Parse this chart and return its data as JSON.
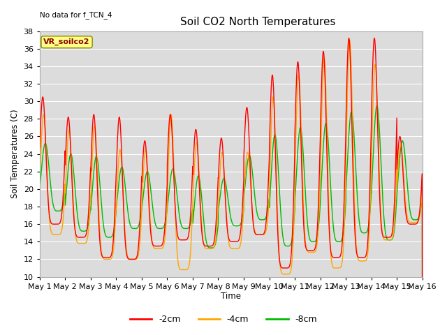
{
  "title": "Soil CO2 North Temperatures",
  "no_data_text": "No data for f_TCN_4",
  "ylabel": "Soil Temperatures (C)",
  "xlabel": "Time",
  "legend_label": "VR_soilco2",
  "ylim": [
    10,
    38
  ],
  "xlim": [
    0,
    15
  ],
  "line_colors": {
    "m2cm": "#ff0000",
    "m4cm": "#ffa500",
    "m8cm": "#00bb00"
  },
  "bg_color": "#dcdcdc",
  "fig_bg": "#ffffff",
  "grid_color": "#ffffff",
  "tick_labels": [
    "May 1",
    "May 2",
    "May 3",
    "May 4",
    "May 5",
    "May 6",
    "May 7",
    "May 8",
    "May 9",
    "May 10",
    "May 11",
    "May 12",
    "May 13",
    "May 14",
    "May 15",
    "May 16"
  ],
  "figsize": [
    6.4,
    4.8
  ],
  "dpi": 100,
  "peaks_2cm": [
    30.5,
    28.2,
    28.5,
    28.2,
    25.5,
    28.5,
    26.8,
    25.8,
    29.3,
    33.0,
    34.5,
    35.7,
    37.2,
    37.2,
    26.0,
    18.5
  ],
  "troughs_2cm": [
    16.0,
    14.5,
    12.2,
    12.0,
    13.5,
    14.2,
    13.5,
    14.0,
    14.8,
    11.0,
    13.0,
    12.2,
    12.2,
    14.5,
    16.0,
    18.5
  ],
  "peaks_4cm": [
    28.5,
    26.7,
    27.2,
    24.5,
    24.5,
    28.5,
    25.3,
    24.2,
    24.2,
    30.5,
    33.0,
    35.0,
    37.0,
    34.2,
    25.0,
    17.8
  ],
  "troughs_4cm": [
    14.8,
    13.8,
    12.0,
    12.0,
    13.2,
    10.8,
    13.2,
    13.2,
    14.8,
    10.3,
    12.8,
    11.0,
    11.8,
    14.2,
    16.2,
    17.8
  ],
  "peaks_8cm": [
    25.2,
    24.0,
    23.7,
    22.5,
    22.0,
    22.3,
    21.5,
    21.2,
    23.8,
    26.2,
    27.0,
    27.5,
    28.8,
    29.5,
    25.5,
    19.8
  ],
  "troughs_8cm": [
    17.5,
    15.2,
    14.5,
    15.5,
    15.5,
    15.5,
    13.3,
    15.8,
    16.5,
    13.5,
    14.0,
    14.0,
    15.0,
    14.2,
    16.5,
    19.8
  ],
  "peak_time_2cm": 0.62,
  "peak_time_4cm": 0.65,
  "peak_time_8cm": 0.72,
  "sharpness": 3.5
}
